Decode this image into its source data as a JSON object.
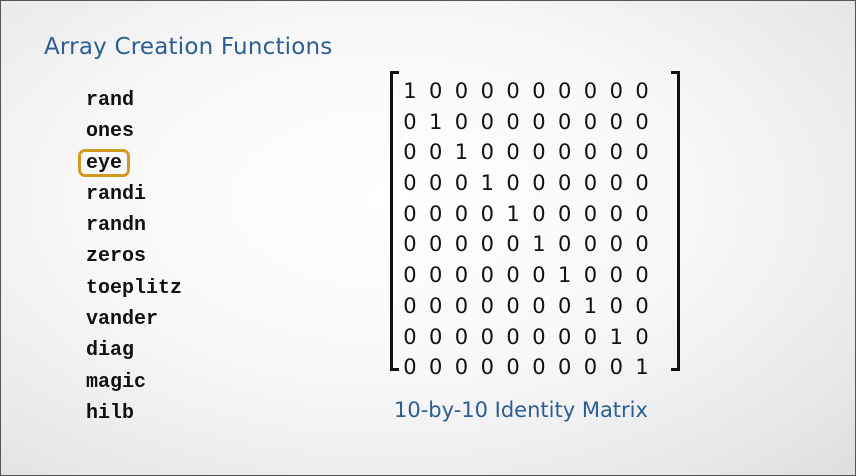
{
  "slide": {
    "title": "Array Creation Functions",
    "functions": [
      {
        "name": "rand",
        "highlighted": false
      },
      {
        "name": "ones",
        "highlighted": false
      },
      {
        "name": "eye",
        "highlighted": true
      },
      {
        "name": "randi",
        "highlighted": false
      },
      {
        "name": "randn",
        "highlighted": false
      },
      {
        "name": "zeros",
        "highlighted": false
      },
      {
        "name": "toeplitz",
        "highlighted": false
      },
      {
        "name": "vander",
        "highlighted": false
      },
      {
        "name": "diag",
        "highlighted": false
      },
      {
        "name": "magic",
        "highlighted": false
      },
      {
        "name": "hilb",
        "highlighted": false
      }
    ],
    "highlight_color": "#d49a1e",
    "title_color": "#2b5e94",
    "matrix": [
      [
        1,
        0,
        0,
        0,
        0,
        0,
        0,
        0,
        0,
        0
      ],
      [
        0,
        1,
        0,
        0,
        0,
        0,
        0,
        0,
        0,
        0
      ],
      [
        0,
        0,
        1,
        0,
        0,
        0,
        0,
        0,
        0,
        0
      ],
      [
        0,
        0,
        0,
        1,
        0,
        0,
        0,
        0,
        0,
        0
      ],
      [
        0,
        0,
        0,
        0,
        1,
        0,
        0,
        0,
        0,
        0
      ],
      [
        0,
        0,
        0,
        0,
        0,
        1,
        0,
        0,
        0,
        0
      ],
      [
        0,
        0,
        0,
        0,
        0,
        0,
        1,
        0,
        0,
        0
      ],
      [
        0,
        0,
        0,
        0,
        0,
        0,
        0,
        1,
        0,
        0
      ],
      [
        0,
        0,
        0,
        0,
        0,
        0,
        0,
        0,
        1,
        0
      ],
      [
        0,
        0,
        0,
        0,
        0,
        0,
        0,
        0,
        0,
        1
      ]
    ],
    "matrix_caption": "10-by-10 Identity Matrix"
  }
}
